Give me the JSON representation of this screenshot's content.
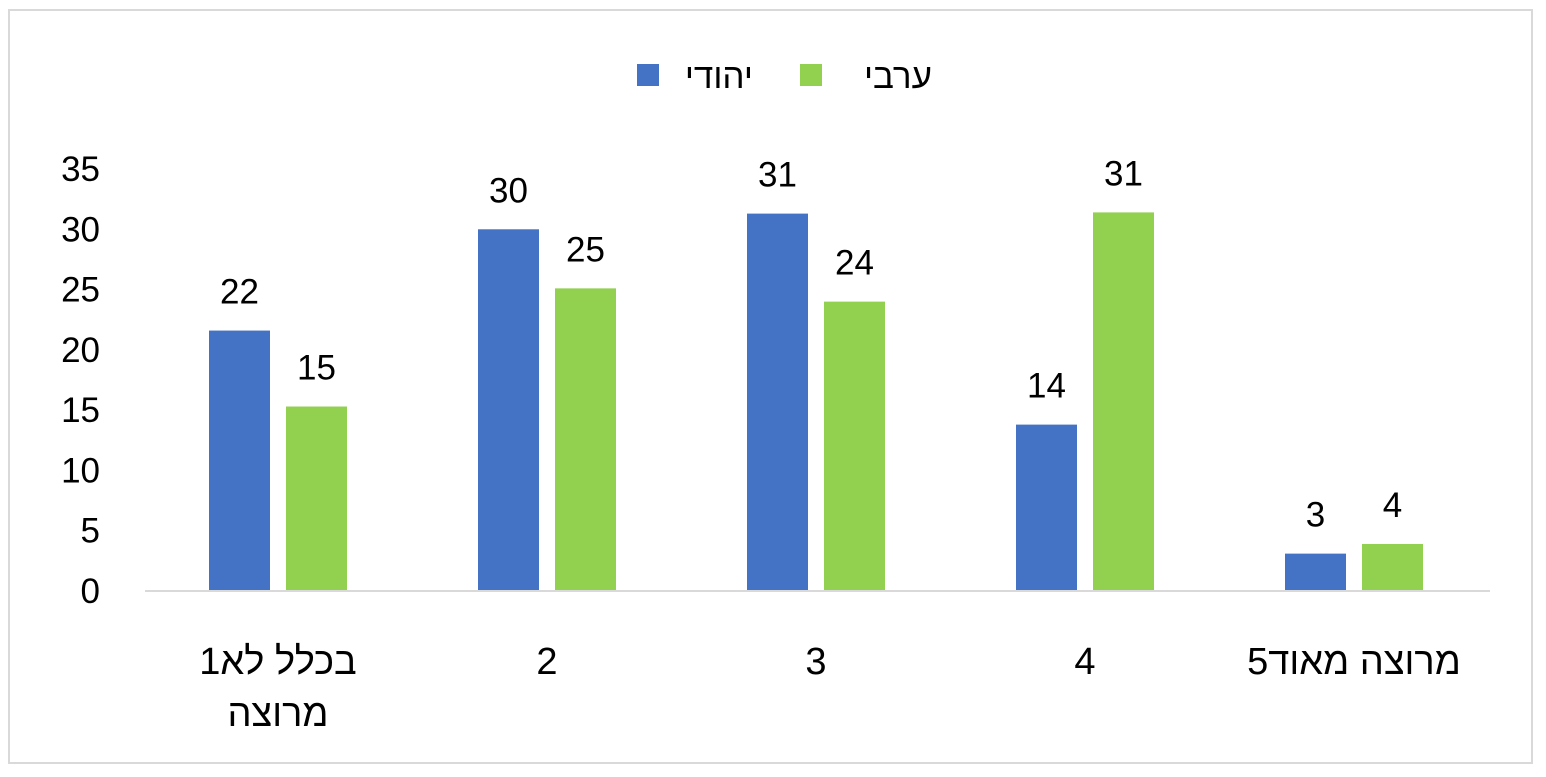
{
  "chart_data": {
    "type": "bar",
    "title": "",
    "xlabel": "",
    "ylabel": "",
    "categories": [
      [
        "1בכלל לא",
        "מרוצה"
      ],
      [
        "2"
      ],
      [
        "3"
      ],
      [
        "4"
      ],
      [
        "5מרוצה מאוד"
      ]
    ],
    "series": [
      {
        "name": "יהודי",
        "color": "#4472C4",
        "values": [
          22,
          30,
          31,
          14,
          3
        ],
        "plot_values": [
          21.6,
          30.0,
          31.3,
          13.8,
          3.1
        ]
      },
      {
        "name": "ערבי",
        "color": "#92D050",
        "values": [
          15,
          25,
          24,
          31,
          4
        ],
        "plot_values": [
          15.3,
          25.1,
          24.0,
          31.4,
          3.9
        ]
      }
    ],
    "ylim": [
      0,
      35
    ],
    "yticks": [
      0,
      5,
      10,
      15,
      20,
      25,
      30,
      35
    ],
    "grid": false,
    "legend_position": "top-center"
  }
}
